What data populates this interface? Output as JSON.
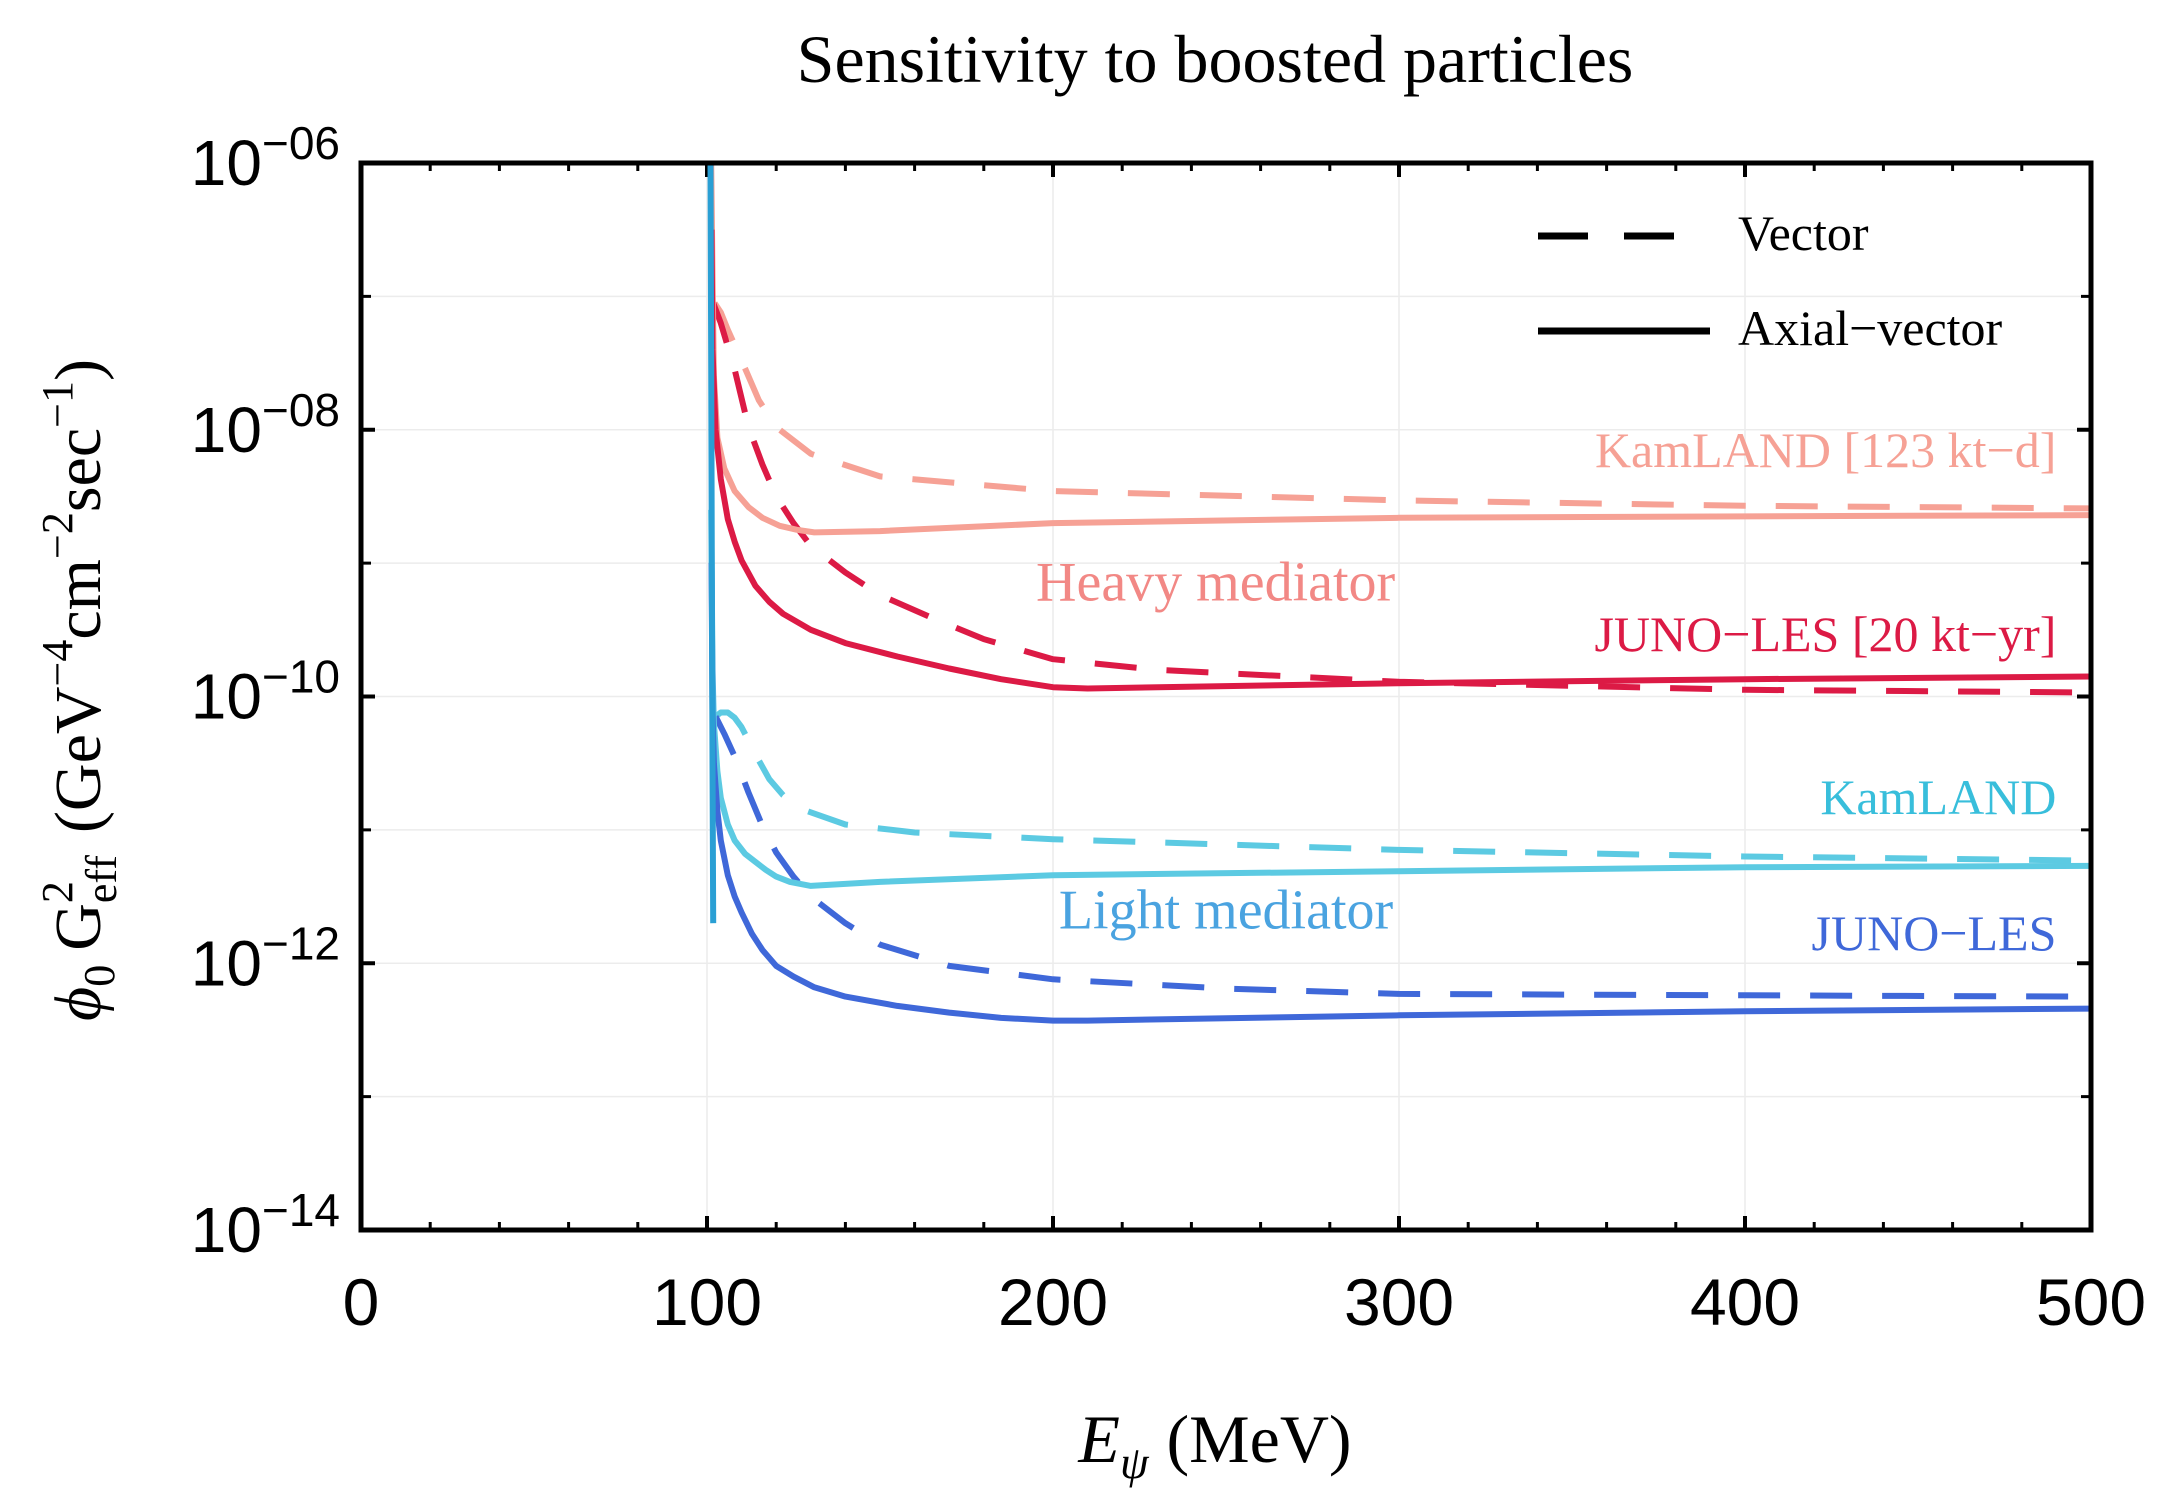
{
  "chart_data": {
    "type": "line",
    "title": "Sensitivity to boosted particles",
    "xlabel": {
      "sym": "E",
      "sub": "ψ",
      "unit": "(MeV)"
    },
    "ylabel": {
      "phi": "ϕ",
      "phi_sub": "0",
      "g": "G",
      "g_sup": "2",
      "g_sub": "eff",
      "unit_open": "(GeV",
      "unit_exp1": "−4",
      "unit_mid": "cm",
      "unit_exp2": "−2",
      "unit_end": "sec",
      "unit_exp3": "−1",
      "unit_close": ")"
    },
    "xlim": [
      0,
      500
    ],
    "ylim_log10": [
      -14,
      -6
    ],
    "x_ticks": [
      0,
      100,
      200,
      300,
      400,
      500
    ],
    "x_tick_labels": [
      "0",
      "100",
      "200",
      "300",
      "400",
      "500"
    ],
    "y_ticks": [
      {
        "exp": -14,
        "base": "10",
        "sup": "−14"
      },
      {
        "exp": -12,
        "base": "10",
        "sup": "−12"
      },
      {
        "exp": -10,
        "base": "10",
        "sup": "−10"
      },
      {
        "exp": -8,
        "base": "10",
        "sup": "−08"
      },
      {
        "exp": -6,
        "base": "10",
        "sup": "−06"
      }
    ],
    "y_minor_ticks_log10": [
      -13,
      -11,
      -9,
      -7
    ],
    "grid": true,
    "legend": {
      "position": "top-right",
      "entries": [
        {
          "label": "Vector",
          "style": "dashed"
        },
        {
          "label": "Axial−vector",
          "style": "solid"
        }
      ]
    },
    "annotations": [
      {
        "key": "heavy",
        "text": "Heavy mediator",
        "x": 247,
        "y_log10": -9.28,
        "color": "#f28885"
      },
      {
        "key": "light",
        "text": "Light mediator",
        "x": 250,
        "y_log10": -11.74,
        "color": "#4aa3e0"
      },
      {
        "key": "kam_heavy",
        "text": "KamLAND [123 kt−d]",
        "x": 490,
        "y_log10": -8.28,
        "color": "#f6a195"
      },
      {
        "key": "juno_heavy",
        "text": "JUNO−LES [20 kt−yr]",
        "x": 490,
        "y_log10": -9.66,
        "color": "#dc1a45"
      },
      {
        "key": "kam_light",
        "text": "KamLAND",
        "x": 490,
        "y_log10": -10.88,
        "color": "#38bedb"
      },
      {
        "key": "juno_light",
        "text": "JUNO−LES",
        "x": 490,
        "y_log10": -11.9,
        "color": "#3f68d9"
      }
    ],
    "series": [
      {
        "name": "KamLAND heavy mediator (axial-vector)",
        "color": "#f6a195",
        "style": "solid",
        "x": [
          101.2,
          101.6,
          102,
          103,
          105,
          108,
          112,
          116,
          121,
          126,
          131,
          150,
          200,
          300,
          400,
          500
        ],
        "y_log10": [
          -6,
          -6.8,
          -7.6,
          -8.06,
          -8.29,
          -8.46,
          -8.58,
          -8.66,
          -8.72,
          -8.75,
          -8.77,
          -8.76,
          -8.7,
          -8.66,
          -8.65,
          -8.64
        ]
      },
      {
        "name": "KamLAND heavy mediator (vector)",
        "color": "#f6a195",
        "style": "dashed",
        "x": [
          102.2,
          104,
          106,
          110,
          115,
          120,
          130,
          150,
          200,
          300,
          400,
          500
        ],
        "y_log10": [
          -7.05,
          -7.12,
          -7.25,
          -7.48,
          -7.78,
          -7.98,
          -8.18,
          -8.35,
          -8.46,
          -8.53,
          -8.57,
          -8.59
        ]
      },
      {
        "name": "JUNO-LES heavy mediator (axial-vector)",
        "color": "#dc1a45",
        "style": "solid",
        "x": [
          101.3,
          101.6,
          102.5,
          104,
          106,
          108,
          110,
          114,
          118,
          122,
          130,
          140,
          155,
          170,
          185,
          200,
          210,
          300,
          400,
          500
        ],
        "y_log10": [
          -6.5,
          -7.4,
          -8.0,
          -8.37,
          -8.67,
          -8.84,
          -8.98,
          -9.17,
          -9.29,
          -9.38,
          -9.5,
          -9.6,
          -9.7,
          -9.79,
          -9.87,
          -9.93,
          -9.94,
          -9.9,
          -9.87,
          -9.85
        ]
      },
      {
        "name": "JUNO-LES heavy mediator (vector)",
        "color": "#dc1a45",
        "style": "dashed",
        "x": [
          101.8,
          104,
          108,
          112,
          116,
          120,
          125,
          130,
          140,
          150,
          165,
          180,
          200,
          230,
          300,
          400,
          500
        ],
        "y_log10": [
          -7.05,
          -7.2,
          -7.55,
          -7.98,
          -8.26,
          -8.5,
          -8.7,
          -8.87,
          -9.07,
          -9.24,
          -9.41,
          -9.57,
          -9.72,
          -9.8,
          -9.89,
          -9.95,
          -9.97
        ]
      },
      {
        "name": "KamLAND light mediator (axial-vector)",
        "color": "#5ccae2",
        "style": "solid",
        "x": [
          101.2,
          101.6,
          102,
          103,
          104,
          106,
          108,
          111,
          114,
          117,
          120,
          124,
          130,
          150,
          200,
          300,
          400,
          500
        ],
        "y_log10": [
          -8.6,
          -9.8,
          -10.2,
          -10.56,
          -10.76,
          -10.96,
          -11.08,
          -11.18,
          -11.24,
          -11.3,
          -11.35,
          -11.39,
          -11.42,
          -11.39,
          -11.34,
          -11.31,
          -11.28,
          -11.27
        ]
      },
      {
        "name": "KamLAND light mediator (vector)",
        "color": "#5ccae2",
        "style": "dashed",
        "x": [
          102.5,
          104,
          106,
          108,
          110,
          112,
          115,
          118,
          122,
          128,
          140,
          160,
          200,
          300,
          400,
          500
        ],
        "y_log10": [
          -10.15,
          -10.12,
          -10.12,
          -10.16,
          -10.23,
          -10.33,
          -10.48,
          -10.62,
          -10.74,
          -10.85,
          -10.96,
          -11.02,
          -11.07,
          -11.15,
          -11.2,
          -11.23
        ]
      },
      {
        "name": "JUNO-LES light mediator (axial-vector)",
        "color": "#3f68d9",
        "style": "solid",
        "x": [
          101.3,
          101.6,
          102,
          103,
          104,
          106,
          108,
          110,
          113,
          116,
          120,
          125,
          131,
          140,
          155,
          170,
          185,
          200,
          210,
          300,
          400,
          500
        ],
        "y_log10": [
          -9.0,
          -10.1,
          -10.5,
          -10.86,
          -11.08,
          -11.34,
          -11.5,
          -11.62,
          -11.78,
          -11.9,
          -12.02,
          -12.1,
          -12.18,
          -12.25,
          -12.32,
          -12.37,
          -12.41,
          -12.43,
          -12.43,
          -12.39,
          -12.36,
          -12.34
        ]
      },
      {
        "name": "JUNO-LES light mediator (vector)",
        "color": "#3f68d9",
        "style": "dashed",
        "x": [
          102.5,
          105,
          108,
          112,
          116,
          120,
          125,
          130,
          140,
          150,
          170,
          200,
          250,
          300,
          400,
          500
        ],
        "y_log10": [
          -10.15,
          -10.28,
          -10.45,
          -10.72,
          -10.97,
          -11.17,
          -11.35,
          -11.5,
          -11.7,
          -11.86,
          -12.02,
          -12.12,
          -12.19,
          -12.23,
          -12.24,
          -12.25
        ]
      },
      {
        "name": "threshold edge",
        "color": "#2a9fd4",
        "style": "solid",
        "x": [
          101.0,
          101.2,
          101.4,
          101.6,
          101.8
        ],
        "y_log10": [
          -6,
          -7.5,
          -9.0,
          -10.5,
          -11.7
        ]
      }
    ]
  }
}
